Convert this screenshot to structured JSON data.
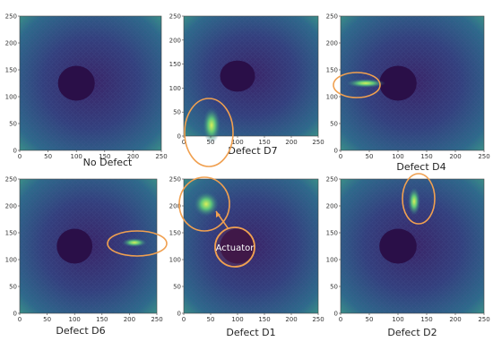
{
  "panels": [
    {
      "caption": "No Defect",
      "xticks": [
        0,
        50,
        100,
        150,
        200,
        250
      ],
      "yticks": [
        0,
        50,
        100,
        150,
        200,
        250
      ]
    },
    {
      "caption": "Defect D7",
      "xticks": [
        0,
        50,
        100,
        150,
        200,
        250
      ],
      "yticks": [
        0,
        50,
        100,
        150,
        200,
        250
      ]
    },
    {
      "caption": "Defect D4",
      "xticks": [
        0,
        50,
        100,
        150,
        200,
        250
      ],
      "yticks": [
        0,
        50,
        100,
        150,
        200,
        250
      ]
    },
    {
      "caption": "Defect D6",
      "xticks": [
        0,
        50,
        100,
        150,
        200,
        250
      ],
      "yticks": [
        0,
        50,
        100,
        150,
        200,
        250
      ]
    },
    {
      "caption": "Defect D1",
      "xticks": [
        0,
        50,
        100,
        150,
        200,
        250
      ],
      "yticks": [
        0,
        50,
        100,
        150,
        200,
        250
      ]
    },
    {
      "caption": "Defect D2",
      "xticks": [
        0,
        50,
        100,
        150,
        200,
        250
      ],
      "yticks": [
        0,
        50,
        100,
        150,
        200,
        250
      ]
    }
  ],
  "annotation": "Actuator"
}
